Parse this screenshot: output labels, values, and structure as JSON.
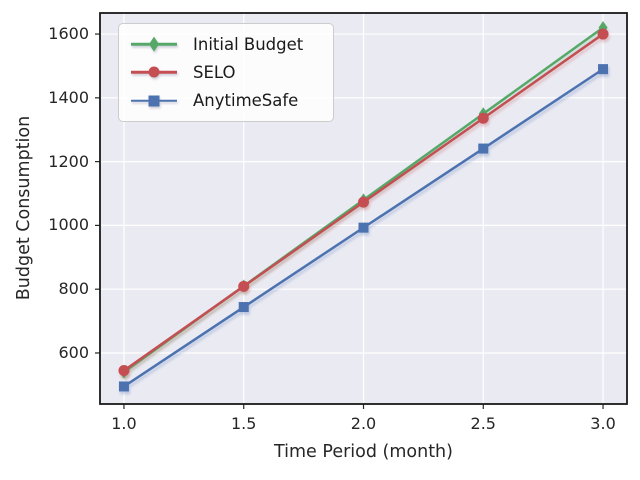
{
  "chart_data": {
    "type": "line",
    "title": "",
    "xlabel": "Time Period (month)",
    "ylabel": "Budget Consumption",
    "x": [
      1.0,
      1.5,
      2.0,
      2.5,
      3.0
    ],
    "series": [
      {
        "name": "Initial Budget",
        "color": "#55a868",
        "marker": "diamond",
        "values": [
          540,
          810,
          1080,
          1350,
          1620
        ]
      },
      {
        "name": "SELO",
        "color": "#c44e52",
        "marker": "circle",
        "values": [
          545,
          809,
          1073,
          1336,
          1600
        ]
      },
      {
        "name": "AnytimeSafe",
        "color": "#4c72b0",
        "marker": "square",
        "values": [
          495,
          744,
          993,
          1241,
          1490
        ]
      }
    ],
    "xticks": [
      1.0,
      1.5,
      2.0,
      2.5,
      3.0
    ],
    "xtick_labels": [
      "1.0",
      "1.5",
      "2.0",
      "2.5",
      "3.0"
    ],
    "yticks": [
      600,
      800,
      1000,
      1200,
      1400,
      1600
    ],
    "ytick_labels": [
      "600",
      "800",
      "1000",
      "1200",
      "1400",
      "1600"
    ],
    "xlim": [
      0.9,
      3.1
    ],
    "ylim": [
      440,
      1666
    ],
    "grid": true,
    "legend_position": "upper-left",
    "colors": {
      "plot_background": "#eaeaf2",
      "grid": "#ffffff",
      "frame": "#1a1a1a",
      "text": "#262626"
    }
  }
}
